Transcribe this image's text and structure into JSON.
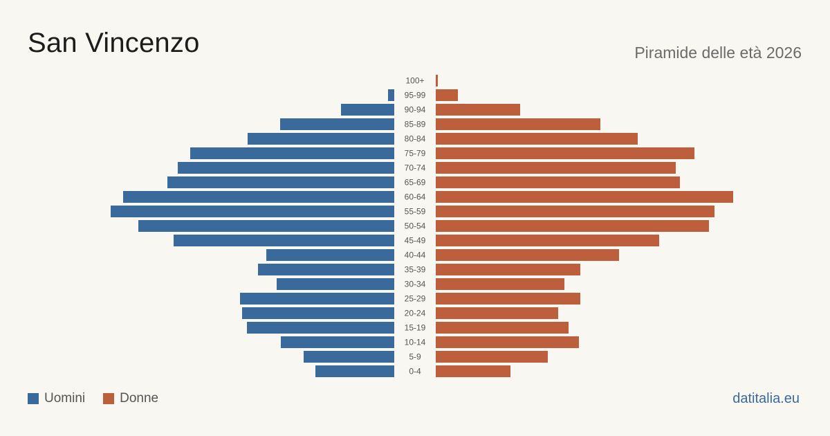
{
  "header": {
    "title": "San Vincenzo",
    "subtitle": "Piramide delle età 2026"
  },
  "legend": {
    "items": [
      {
        "label": "Uomini",
        "color": "#3a6a9c"
      },
      {
        "label": "Donne",
        "color": "#bd5f3c"
      }
    ]
  },
  "footer": {
    "source": "datitalia.eu"
  },
  "chart_data": {
    "type": "bar",
    "orientation": "horizontal-pyramid",
    "categories": [
      "100+",
      "95-99",
      "90-94",
      "85-89",
      "80-84",
      "75-79",
      "70-74",
      "65-69",
      "60-64",
      "55-59",
      "50-54",
      "45-49",
      "40-44",
      "35-39",
      "30-34",
      "25-29",
      "20-24",
      "15-19",
      "10-14",
      "5-9",
      "0-4"
    ],
    "series": [
      {
        "name": "Uomini",
        "color": "#3a6a9c",
        "values": [
          0,
          9,
          77,
          165,
          212,
          295,
          313,
          328,
          392,
          410,
          370,
          319,
          185,
          197,
          170,
          223,
          220,
          213,
          164,
          131,
          114
        ]
      },
      {
        "name": "Donne",
        "color": "#bd5f3c",
        "values": [
          3,
          32,
          122,
          238,
          292,
          374,
          347,
          353,
          430,
          403,
          395,
          323,
          265,
          209,
          186,
          209,
          177,
          192,
          207,
          162,
          108
        ]
      }
    ],
    "grid": false,
    "legend_position": "bottom-left"
  }
}
